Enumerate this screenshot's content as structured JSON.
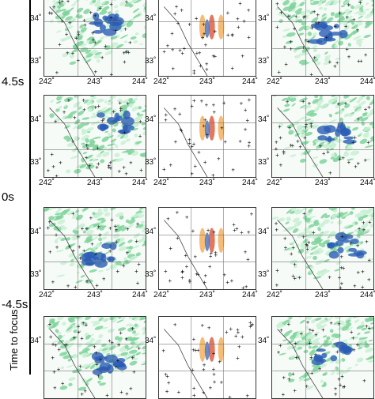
{
  "time_axis": {
    "labels": [
      "4.5s",
      "0s",
      "-4.5s"
    ],
    "rotated_label": "Time to focus"
  },
  "axes": {
    "longitude_ticks": [
      "242˚",
      "243˚",
      "244˚"
    ],
    "latitude_ticks": [
      "34˚",
      "33˚"
    ]
  },
  "colors": {
    "wavefield_green": "#7fd39b",
    "wavefield_light": "#c8f0d4",
    "wavefield_blue": "#2a5db5",
    "source_orange": "#f2a54a",
    "source_red": "#d94a2b",
    "station_marker": "#111111",
    "grid_line": "#777777"
  }
}
